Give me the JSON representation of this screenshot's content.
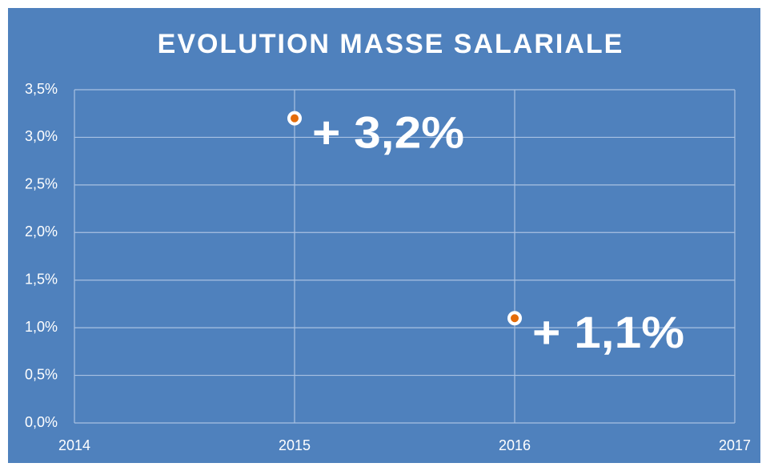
{
  "chart_data": {
    "type": "scatter",
    "title": "EVOLUTION MASSE SALARIALE",
    "x": [
      2015,
      2016
    ],
    "values": [
      3.2,
      1.1
    ],
    "value_labels": [
      "+ 3,2%",
      "+ 1,1%"
    ],
    "color": "#e46c0a",
    "xlim": [
      2014,
      2017
    ],
    "xticks": [
      2014,
      2015,
      2016,
      2017
    ],
    "ylim": [
      0,
      3.5
    ],
    "yticks": [
      {
        "value": 0,
        "label": "0,0%"
      },
      {
        "value": 0.5,
        "label": "0,5%"
      },
      {
        "value": 1,
        "label": "1,0%"
      },
      {
        "value": 1.5,
        "label": "1,5%"
      },
      {
        "value": 2,
        "label": "2,0%"
      },
      {
        "value": 2.5,
        "label": "2,5%"
      },
      {
        "value": 3,
        "label": "3,0%"
      },
      {
        "value": 3.5,
        "label": "3,5%"
      }
    ],
    "grid": true
  }
}
